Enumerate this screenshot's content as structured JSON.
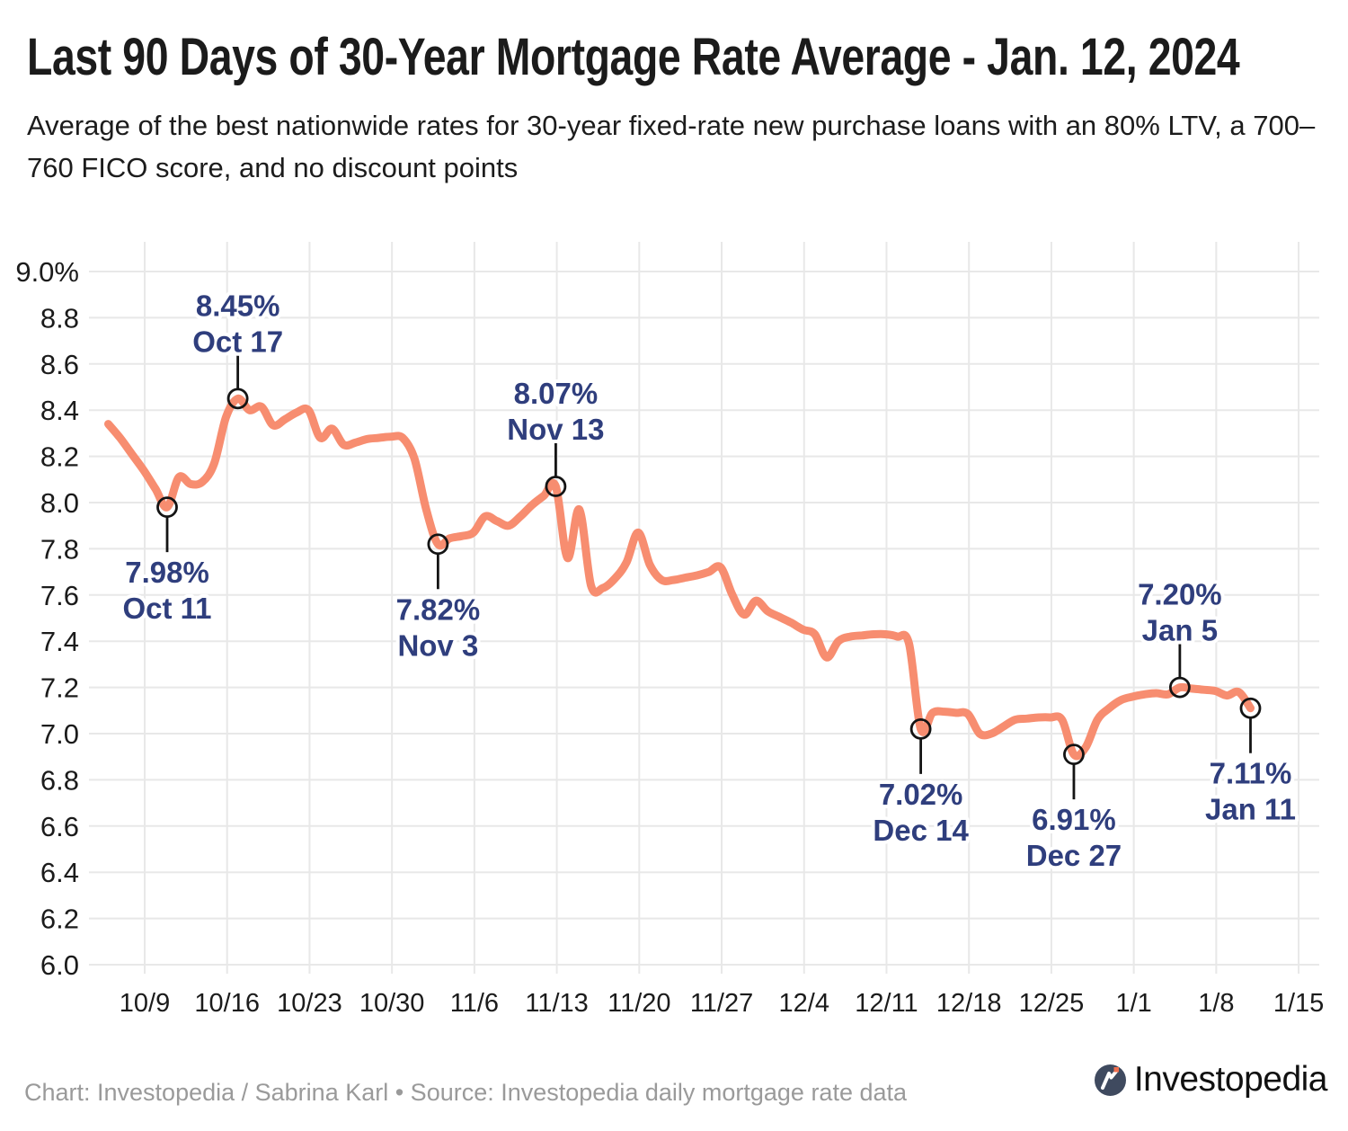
{
  "chart_data": {
    "type": "line",
    "title": "Last 90 Days of 30-Year Mortgage Rate Average - Jan. 12, 2024",
    "subtitle_lines": [
      "Average of the best nationwide rates for 30-year fixed-rate new purchase loans with an 80% LTV, a 700–",
      "760 FICO score, and no discount points"
    ],
    "series_name": "30-year mortgage rate average",
    "unit": "%",
    "ylim": [
      6.0,
      9.0
    ],
    "ytick_step": 0.2,
    "ytick_labels": [
      "9.0%",
      "8.8",
      "8.6",
      "8.4",
      "8.2",
      "8.0",
      "7.8",
      "7.6",
      "7.4",
      "7.2",
      "7.0",
      "6.8",
      "6.6",
      "6.4",
      "6.2",
      "6.0"
    ],
    "xtick_labels": [
      "10/9",
      "10/16",
      "10/23",
      "10/30",
      "11/6",
      "11/13",
      "11/20",
      "11/27",
      "12/4",
      "12/11",
      "12/18",
      "12/25",
      "1/1",
      "1/8",
      "1/15"
    ],
    "grid": true,
    "legend": "none",
    "line_color": "#F78D70",
    "annotation_color": "#2F3E7D",
    "dates": [
      "10/6",
      "10/7",
      "10/8",
      "10/9",
      "10/10",
      "10/11",
      "10/12",
      "10/13",
      "10/14",
      "10/15",
      "10/16",
      "10/17",
      "10/18",
      "10/19",
      "10/20",
      "10/21",
      "10/22",
      "10/23",
      "10/24",
      "10/25",
      "10/26",
      "10/27",
      "10/28",
      "10/29",
      "10/30",
      "10/31",
      "11/1",
      "11/2",
      "11/3",
      "11/4",
      "11/5",
      "11/6",
      "11/7",
      "11/8",
      "11/9",
      "11/10",
      "11/11",
      "11/12",
      "11/13",
      "11/14",
      "11/15",
      "11/16",
      "11/17",
      "11/18",
      "11/19",
      "11/20",
      "11/21",
      "11/22",
      "11/23",
      "11/24",
      "11/25",
      "11/26",
      "11/27",
      "11/28",
      "11/29",
      "11/30",
      "12/1",
      "12/2",
      "12/3",
      "12/4",
      "12/5",
      "12/6",
      "12/7",
      "12/8",
      "12/9",
      "12/10",
      "12/11",
      "12/12",
      "12/13",
      "12/14",
      "12/15",
      "12/16",
      "12/17",
      "12/18",
      "12/19",
      "12/20",
      "12/21",
      "12/22",
      "12/23",
      "12/24",
      "12/25",
      "12/26",
      "12/27",
      "12/28",
      "12/29",
      "12/30",
      "12/31",
      "1/1",
      "1/2",
      "1/3",
      "1/4",
      "1/5",
      "1/6",
      "1/7",
      "1/8",
      "1/9",
      "1/10",
      "1/11"
    ],
    "values": [
      8.34,
      8.28,
      8.21,
      8.14,
      8.06,
      7.98,
      8.11,
      8.08,
      8.09,
      8.17,
      8.37,
      8.45,
      8.4,
      8.415,
      8.335,
      8.36,
      8.39,
      8.4,
      8.28,
      8.32,
      8.25,
      8.26,
      8.275,
      8.28,
      8.285,
      8.28,
      8.19,
      7.97,
      7.82,
      7.845,
      7.855,
      7.87,
      7.94,
      7.92,
      7.9,
      7.94,
      7.99,
      8.03,
      8.07,
      7.76,
      7.97,
      7.64,
      7.63,
      7.67,
      7.74,
      7.87,
      7.73,
      7.665,
      7.665,
      7.675,
      7.685,
      7.7,
      7.72,
      7.6,
      7.515,
      7.575,
      7.53,
      7.505,
      7.48,
      7.45,
      7.43,
      7.33,
      7.4,
      7.42,
      7.425,
      7.43,
      7.43,
      7.42,
      7.39,
      7.02,
      7.09,
      7.095,
      7.09,
      7.085,
      7.0,
      7.0,
      7.03,
      7.06,
      7.065,
      7.07,
      7.07,
      7.06,
      6.91,
      6.94,
      7.06,
      7.11,
      7.145,
      7.16,
      7.17,
      7.175,
      7.17,
      7.2,
      7.195,
      7.19,
      7.185,
      7.165,
      7.18,
      7.11
    ],
    "annotations": [
      {
        "label": "7.98%",
        "date": "Oct 11",
        "index": 5,
        "value": 7.98,
        "placement": "below"
      },
      {
        "label": "8.45%",
        "date": "Oct 17",
        "index": 11,
        "value": 8.45,
        "placement": "above"
      },
      {
        "label": "7.82%",
        "date": "Nov 3",
        "index": 28,
        "value": 7.82,
        "placement": "below"
      },
      {
        "label": "8.07%",
        "date": "Nov 13",
        "index": 38,
        "value": 8.07,
        "placement": "above"
      },
      {
        "label": "7.02%",
        "date": "Dec 14",
        "index": 69,
        "value": 7.02,
        "placement": "below"
      },
      {
        "label": "6.91%",
        "date": "Dec 27",
        "index": 82,
        "value": 6.91,
        "placement": "below"
      },
      {
        "label": "7.20%",
        "date": "Jan 5",
        "index": 91,
        "value": 7.2,
        "placement": "above"
      },
      {
        "label": "7.11%",
        "date": "Jan 11",
        "index": 97,
        "value": 7.11,
        "placement": "below"
      }
    ]
  },
  "footer": {
    "credit": "Chart: Investopedia / Sabrina Karl • Source: Investopedia daily mortgage rate data",
    "logo_text": "Investopedia"
  },
  "colors": {
    "grid": "#E8E8E8",
    "axis_text": "#1B1B1B",
    "line": "#F78D70",
    "annotation_text": "#2F3E7D",
    "marker_stroke": "#141414",
    "footer_text": "#9A9A9A",
    "logo_circle": "#3F4A5F",
    "logo_dot": "#F1704F"
  }
}
